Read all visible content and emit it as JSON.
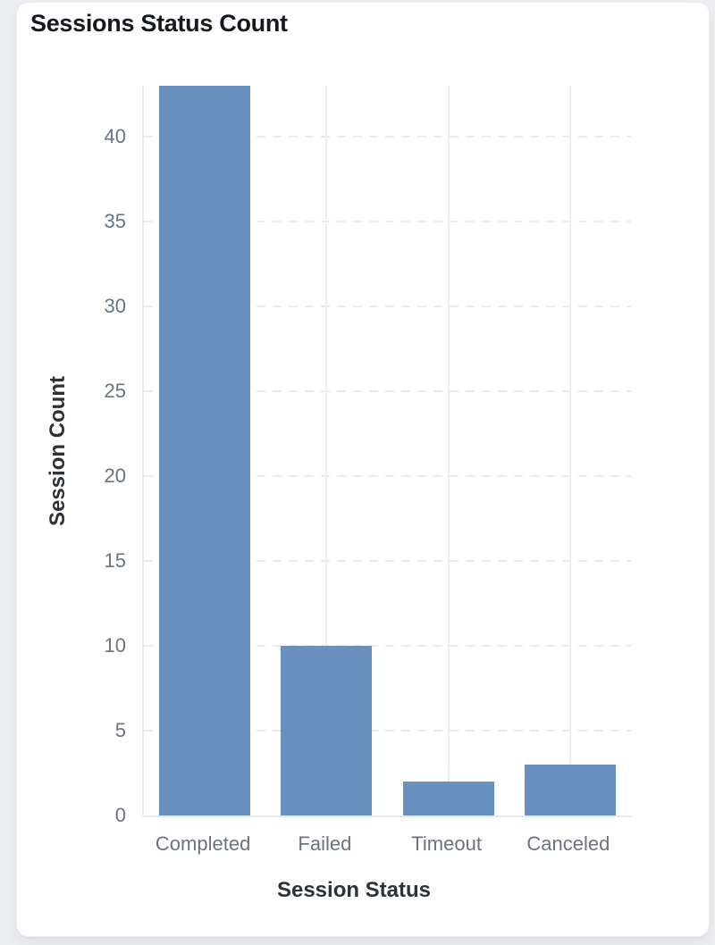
{
  "card": {
    "title": "Sessions Status Count"
  },
  "chart_data": {
    "type": "bar",
    "title": "Sessions Status Count",
    "categories": [
      "Completed",
      "Failed",
      "Timeout",
      "Canceled"
    ],
    "values": [
      43,
      10,
      2,
      3
    ],
    "xlabel": "Session Status",
    "ylabel": "Session Count",
    "ylim": [
      0,
      43
    ],
    "y_ticks": [
      0,
      5,
      10,
      15,
      20,
      25,
      30,
      35,
      40
    ],
    "grid": "horizontal-dashed, vertical-solid-at-category-centers",
    "legend": "none",
    "bar_color": "#6991c0",
    "tick_label_color": "#6b7280",
    "axis_title_color": "#2d313a",
    "title_color": "#15181e",
    "grid_color": "#e7eaef",
    "background_color": "#ffffff",
    "page_background_color": "#edeff2"
  }
}
